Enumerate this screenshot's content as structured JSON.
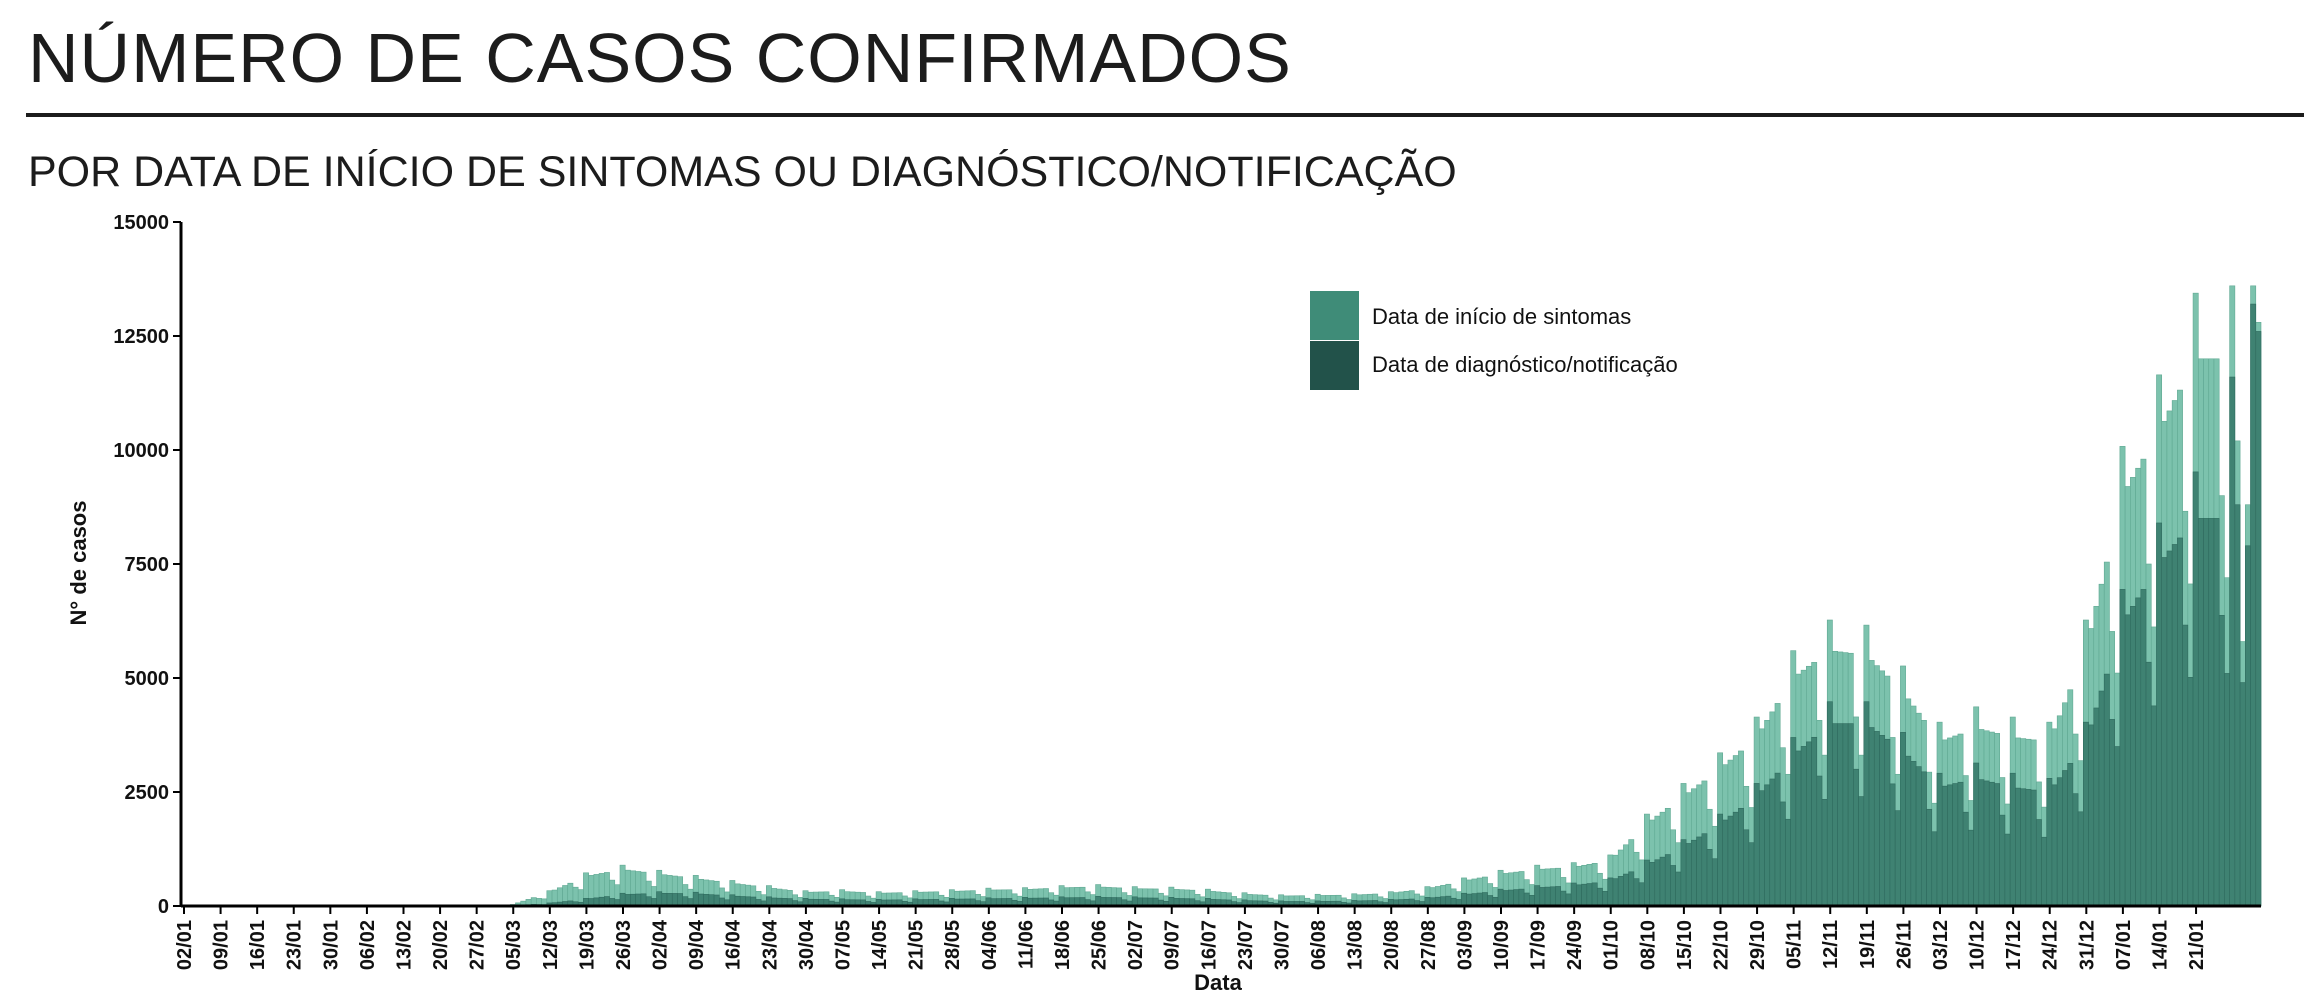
{
  "header": {
    "title": "NÚMERO DE CASOS CONFIRMADOS",
    "subtitle": "POR DATA DE INÍCIO DE SINTOMAS OU DIAGNÓSTICO/NOTIFICAÇÃO"
  },
  "colors": {
    "sintomas": "#3f8c78",
    "sintomas_bar": "#7cc2ad",
    "diagnostico": "#22524a",
    "diagnostico_bar": "#3f8272",
    "axis": "#000000"
  },
  "chart_data": {
    "type": "bar",
    "xlabel": "Data",
    "ylabel": "N° de casos",
    "ylim": [
      0,
      15000
    ],
    "yticks": [
      0,
      2500,
      5000,
      7500,
      10000,
      12500,
      15000
    ],
    "xtick_labels": [
      "02/01",
      "09/01",
      "16/01",
      "23/01",
      "30/01",
      "06/02",
      "13/02",
      "20/02",
      "27/02",
      "05/03",
      "12/03",
      "19/03",
      "26/03",
      "02/04",
      "09/04",
      "16/04",
      "23/04",
      "30/04",
      "07/05",
      "14/05",
      "21/05",
      "28/05",
      "04/06",
      "11/06",
      "18/06",
      "25/06",
      "02/07",
      "09/07",
      "16/07",
      "23/07",
      "30/07",
      "06/08",
      "13/08",
      "20/08",
      "27/08",
      "03/09",
      "10/09",
      "17/09",
      "24/09",
      "01/10",
      "08/10",
      "15/10",
      "22/10",
      "29/10",
      "05/11",
      "12/11",
      "19/11",
      "26/11",
      "03/12",
      "10/12",
      "17/12",
      "24/12",
      "31/12",
      "07/01",
      "14/01",
      "21/01"
    ],
    "legend": {
      "position": "top-center"
    },
    "grid": false,
    "series": [
      {
        "name": "Data de início de sintomas",
        "weekly_values": [
          0,
          0,
          0,
          0,
          0,
          0,
          0,
          0,
          0,
          30,
          300,
          650,
          800,
          700,
          600,
          500,
          400,
          300,
          320,
          280,
          300,
          320,
          350,
          360,
          400,
          420,
          380,
          370,
          330,
          260,
          220,
          230,
          240,
          280,
          380,
          550,
          700,
          800,
          850,
          1000,
          1800,
          2400,
          3000,
          3700,
          5000,
          5600,
          5500,
          4700,
          3600,
          3900,
          3700,
          3600,
          5600,
          9000,
          10400,
          12000
        ],
        "final_days": [
          13600,
          10200,
          5800,
          8800,
          13600,
          12800
        ]
      },
      {
        "name": "Data de diagnóstico/notificação",
        "weekly_values": [
          0,
          0,
          0,
          0,
          0,
          0,
          0,
          0,
          0,
          5,
          60,
          150,
          250,
          280,
          270,
          220,
          180,
          150,
          140,
          130,
          140,
          150,
          160,
          170,
          180,
          190,
          180,
          170,
          150,
          120,
          100,
          100,
          110,
          130,
          170,
          250,
          330,
          400,
          450,
          550,
          900,
          1300,
          1800,
          2400,
          3300,
          4000,
          4000,
          3400,
          2600,
          2800,
          2600,
          2500,
          3600,
          6200,
          7500,
          8500
        ],
        "final_days": [
          11600,
          8800,
          4900,
          7900,
          13200,
          12600
        ]
      }
    ]
  }
}
